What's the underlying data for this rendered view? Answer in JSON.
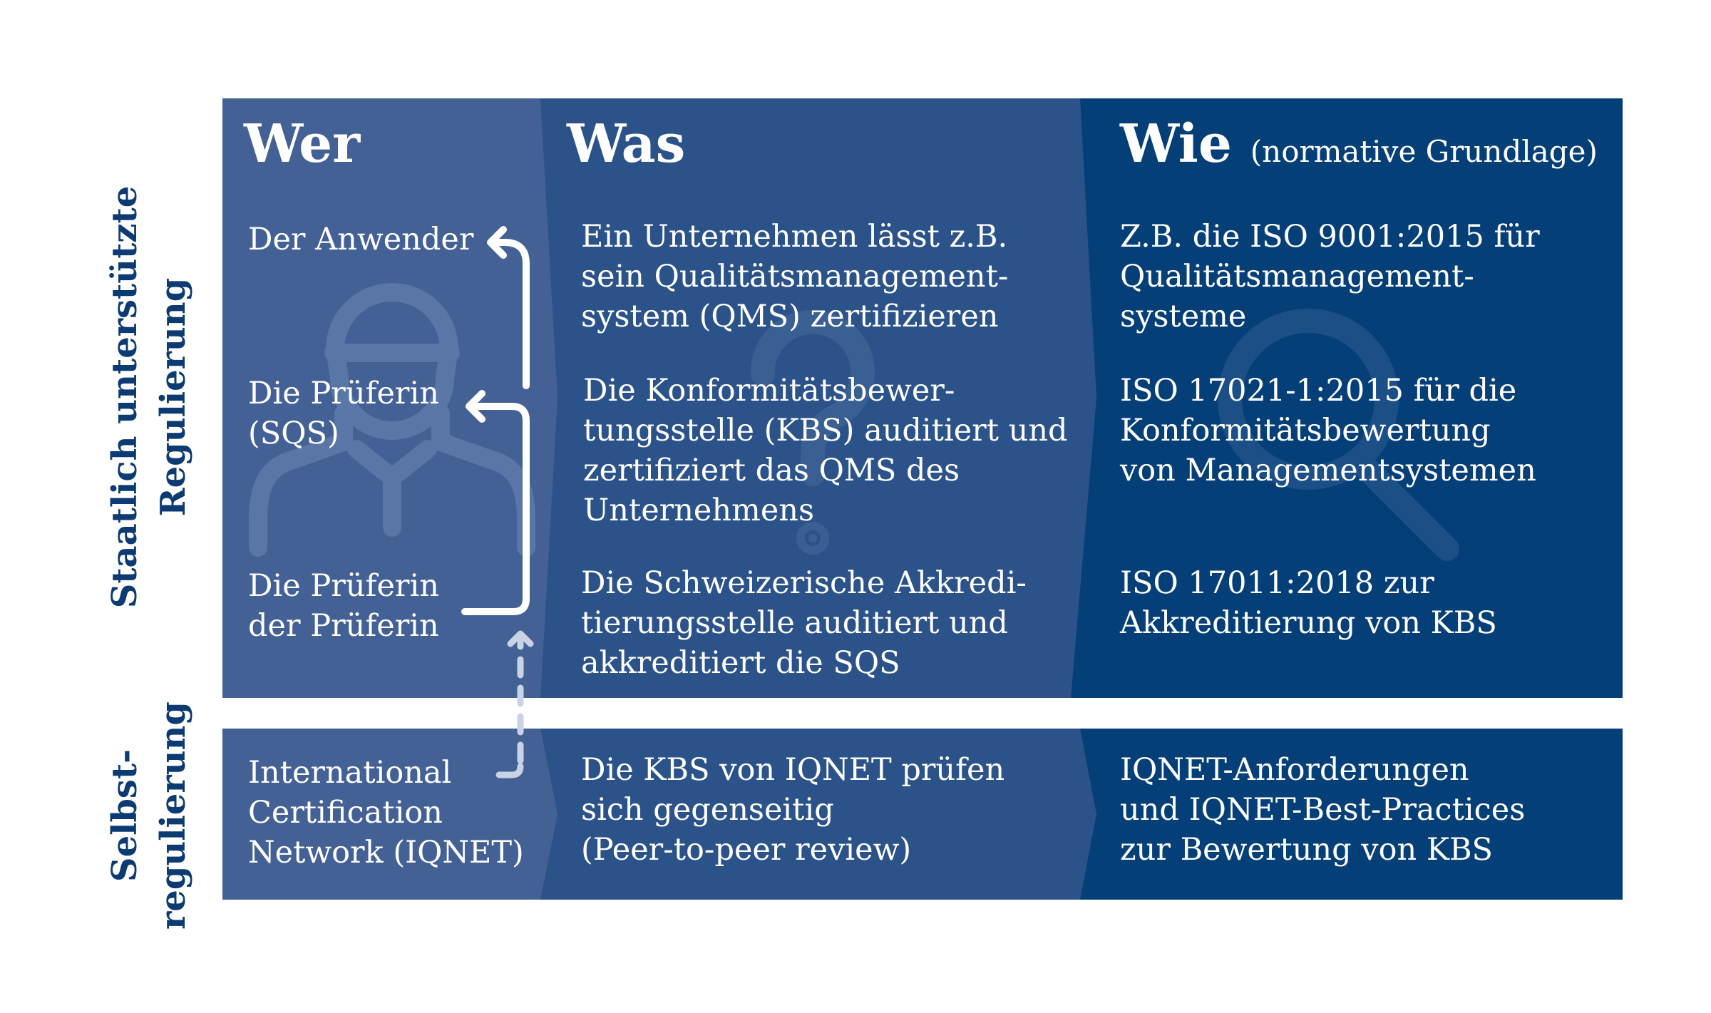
{
  "side_labels": {
    "upper": "Staatlich unterstützte\nRegulierung",
    "lower": "Selbst-\nregulierung"
  },
  "headers": {
    "who": "Wer",
    "what": "Was",
    "how": "Wie",
    "how_note": "(normative Grundlage)"
  },
  "rows": [
    {
      "who": "Der Anwender",
      "what": "Ein Unternehmen lässt z.B.\nsein Qualitätsmanagement-\nsystem (QMS) zertifizieren",
      "how": "Z.B. die ISO 9001:2015 für\nQualitätsmanagement-\nsysteme"
    },
    {
      "who": "Die Prüferin\n(SQS)",
      "what": "Die Konformitätsbewer-\ntungsstelle (KBS) auditiert und\nzertifiziert das QMS des\nUnternehmens",
      "how": "ISO 17021-1:2015 für die\nKonformitätsbewertung\nvon Managementsystemen"
    },
    {
      "who": "Die Prüferin\nder Prüferin",
      "what": "Die Schweizerische Akkredi-\ntierungsstelle auditiert und\nakkreditiert die SQS",
      "how": "ISO 17011:2018 zur\nAkkreditierung von KBS"
    },
    {
      "who": "International\nCertification\nNetwork (IQNET)",
      "what": "Die KBS von IQNET prüfen\nsich gegenseitig\n(Peer-to-peer review)",
      "how": "IQNET-Anforderungen\nund IQNET-Best-Practices\nzur Bewertung von KBS"
    }
  ],
  "colors": {
    "column_who": "#446196",
    "column_what": "#2c5389",
    "column_how": "#053f78",
    "side_label": "#0b3b72"
  },
  "icons": [
    "person-icon",
    "question-mark-icon",
    "magnifier-icon",
    "arrow-up-left-icon",
    "dashed-arrow-icon"
  ]
}
